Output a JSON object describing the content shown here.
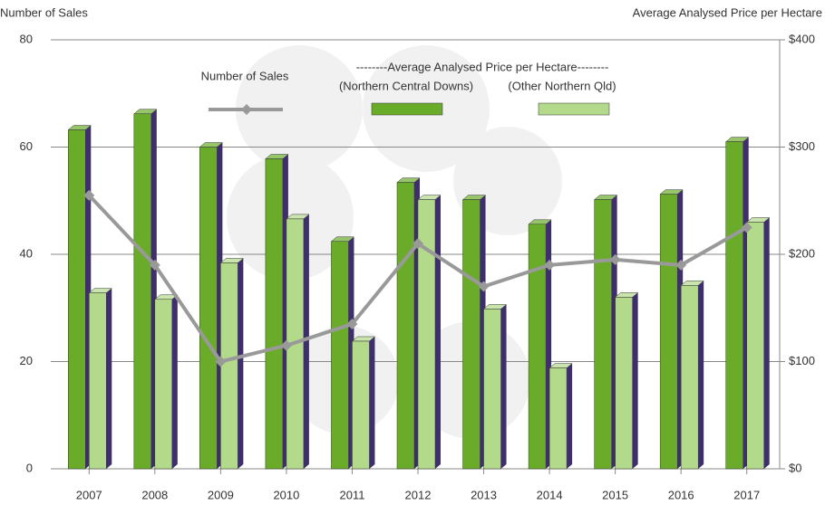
{
  "chart_data": {
    "type": "bar-line",
    "y_label": "Number of Sales",
    "y2_label": "Average Analysed Price per Hectare",
    "legend_heading": "--------Average Analysed Price per Hectare--------",
    "categories": [
      "2007",
      "2008",
      "2009",
      "2010",
      "2011",
      "2012",
      "2013",
      "2014",
      "2015",
      "2016",
      "2017"
    ],
    "series": [
      {
        "name": "Number of Sales",
        "type": "line",
        "color": "#999999",
        "axis": "y",
        "values": [
          51,
          38,
          20,
          23,
          27,
          42,
          34,
          38,
          39,
          38,
          45
        ]
      },
      {
        "name": "(Northern Central Downs)",
        "type": "bar",
        "color": "#6aac2a",
        "axis": "y2",
        "values": [
          316,
          331,
          300,
          289,
          212,
          267,
          251,
          228,
          251,
          256,
          305
        ]
      },
      {
        "name": "(Other Northern Qld)",
        "type": "bar",
        "color": "#b3d98a",
        "axis": "y2",
        "values": [
          164,
          158,
          192,
          233,
          119,
          251,
          149,
          94,
          160,
          171,
          230
        ]
      }
    ],
    "ylim": [
      0,
      80
    ],
    "yticks": [
      0,
      20,
      40,
      60,
      80
    ],
    "y2lim": [
      0,
      400
    ],
    "y2ticks": [
      {
        "value": 0,
        "label": "$0"
      },
      {
        "value": 100,
        "label": "$100"
      },
      {
        "value": 200,
        "label": "$200"
      },
      {
        "value": 300,
        "label": "$300"
      },
      {
        "value": 400,
        "label": "$400"
      }
    ],
    "grid": true
  }
}
